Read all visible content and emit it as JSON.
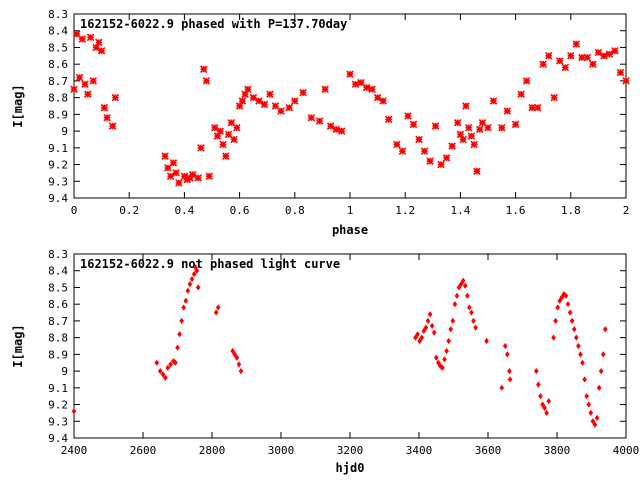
{
  "chart_data": [
    {
      "type": "scatter",
      "title": "162152-6022.9 phased with P=137.70day",
      "xlabel": "phase",
      "ylabel": "I[mag]",
      "xlim": [
        0,
        2
      ],
      "ylim": [
        8.3,
        9.4
      ],
      "y_inverted": true,
      "x_ticks": [
        "0",
        "0.2",
        "0.4",
        "0.6",
        "0.8",
        "1",
        "1.2",
        "1.4",
        "1.6",
        "1.8",
        "2"
      ],
      "y_ticks": [
        "8.3",
        "8.4",
        "8.5",
        "8.6",
        "8.7",
        "8.8",
        "8.9",
        "9",
        "9.1",
        "9.2",
        "9.3",
        "9.4"
      ],
      "grid": false,
      "marker_color": "#ff0000",
      "x": [
        0.0,
        0.01,
        0.02,
        0.03,
        0.04,
        0.05,
        0.06,
        0.07,
        0.08,
        0.09,
        0.1,
        0.11,
        0.12,
        0.14,
        0.15,
        0.33,
        0.34,
        0.35,
        0.36,
        0.37,
        0.38,
        0.4,
        0.41,
        0.42,
        0.43,
        0.45,
        0.46,
        0.47,
        0.48,
        0.49,
        0.51,
        0.52,
        0.53,
        0.54,
        0.55,
        0.56,
        0.57,
        0.58,
        0.59,
        0.6,
        0.61,
        0.62,
        0.63,
        0.65,
        0.67,
        0.69,
        0.71,
        0.73,
        0.75,
        0.78,
        0.8,
        0.83,
        0.86,
        0.89,
        0.91,
        0.93,
        0.95,
        0.97,
        1.0,
        1.02,
        1.04,
        1.06,
        1.08,
        1.1,
        1.12,
        1.14,
        1.17,
        1.19,
        1.21,
        1.23,
        1.25,
        1.27,
        1.29,
        1.31,
        1.33,
        1.35,
        1.37,
        1.39,
        1.4,
        1.41,
        1.42,
        1.43,
        1.44,
        1.45,
        1.46,
        1.47,
        1.48,
        1.5,
        1.52,
        1.55,
        1.57,
        1.6,
        1.62,
        1.64,
        1.66,
        1.68,
        1.7,
        1.72,
        1.74,
        1.76,
        1.78,
        1.8,
        1.82,
        1.84,
        1.86,
        1.88,
        1.9,
        1.92,
        1.94,
        1.96,
        1.98,
        2.0
      ],
      "y": [
        8.75,
        8.42,
        8.68,
        8.45,
        8.72,
        8.78,
        8.44,
        8.7,
        8.5,
        8.47,
        8.52,
        8.86,
        8.92,
        8.97,
        8.8,
        9.15,
        9.22,
        9.27,
        9.19,
        9.25,
        9.31,
        9.27,
        9.29,
        9.28,
        9.26,
        9.28,
        9.1,
        8.63,
        8.7,
        9.27,
        8.98,
        9.03,
        9.0,
        9.08,
        9.15,
        9.02,
        8.95,
        9.05,
        8.98,
        8.85,
        8.82,
        8.78,
        8.75,
        8.8,
        8.82,
        8.84,
        8.78,
        8.85,
        8.88,
        8.86,
        8.82,
        8.77,
        8.92,
        8.94,
        8.75,
        8.97,
        8.99,
        9.0,
        8.66,
        8.72,
        8.71,
        8.74,
        8.75,
        8.8,
        8.82,
        8.93,
        9.08,
        9.12,
        8.91,
        8.96,
        9.05,
        9.12,
        9.18,
        8.97,
        9.2,
        9.16,
        9.09,
        8.95,
        9.02,
        9.05,
        8.85,
        8.98,
        9.03,
        9.08,
        9.24,
        8.99,
        8.95,
        8.98,
        8.82,
        8.98,
        8.88,
        8.96,
        8.78,
        8.7,
        8.86,
        8.86,
        8.6,
        8.55,
        8.8,
        8.58,
        8.62,
        8.55,
        8.48,
        8.56,
        8.56,
        8.6,
        8.53,
        8.55,
        8.54,
        8.52,
        8.65,
        8.7
      ]
    },
    {
      "type": "scatter",
      "title": "162152-6022.9 not phased light curve",
      "xlabel": "hjd0",
      "ylabel": "I[mag]",
      "xlim": [
        2400,
        4000
      ],
      "ylim": [
        8.3,
        9.4
      ],
      "y_inverted": true,
      "x_ticks": [
        "2400",
        "2600",
        "2800",
        "3000",
        "3200",
        "3400",
        "3600",
        "3800",
        "4000"
      ],
      "y_ticks": [
        "8.3",
        "8.4",
        "8.5",
        "8.6",
        "8.7",
        "8.8",
        "8.9",
        "9",
        "9.1",
        "9.2",
        "9.3",
        "9.4"
      ],
      "grid": false,
      "marker_color": "#ff0000",
      "x": [
        2400,
        2640,
        2650,
        2658,
        2665,
        2672,
        2680,
        2688,
        2694,
        2700,
        2706,
        2712,
        2718,
        2724,
        2730,
        2736,
        2742,
        2748,
        2752,
        2756,
        2760,
        2812,
        2818,
        2860,
        2866,
        2872,
        2878,
        2884,
        3390,
        3396,
        3402,
        3408,
        3414,
        3420,
        3426,
        3432,
        3438,
        3444,
        3450,
        3456,
        3462,
        3468,
        3474,
        3480,
        3486,
        3492,
        3498,
        3504,
        3510,
        3516,
        3522,
        3528,
        3534,
        3540,
        3546,
        3552,
        3558,
        3564,
        3596,
        3640,
        3650,
        3656,
        3662,
        3664,
        3740,
        3746,
        3752,
        3758,
        3764,
        3770,
        3776,
        3790,
        3796,
        3802,
        3808,
        3814,
        3820,
        3826,
        3832,
        3838,
        3844,
        3850,
        3856,
        3862,
        3868,
        3874,
        3880,
        3886,
        3892,
        3898,
        3904,
        3910,
        3916,
        3922,
        3928,
        3934,
        3940
      ],
      "y": [
        9.24,
        8.95,
        9.0,
        9.02,
        9.04,
        8.98,
        8.96,
        8.94,
        8.95,
        8.86,
        8.78,
        8.7,
        8.62,
        8.58,
        8.52,
        8.48,
        8.45,
        8.42,
        8.38,
        8.4,
        8.5,
        8.65,
        8.62,
        8.88,
        8.9,
        8.92,
        8.96,
        9.0,
        8.8,
        8.78,
        8.82,
        8.8,
        8.76,
        8.74,
        8.7,
        8.66,
        8.73,
        8.77,
        8.92,
        8.95,
        8.97,
        8.98,
        8.93,
        8.88,
        8.82,
        8.75,
        8.7,
        8.6,
        8.55,
        8.5,
        8.48,
        8.46,
        8.49,
        8.55,
        8.62,
        8.65,
        8.7,
        8.74,
        8.82,
        9.1,
        8.85,
        8.9,
        9.0,
        9.05,
        9.0,
        9.08,
        9.15,
        9.2,
        9.22,
        9.25,
        9.18,
        8.8,
        8.7,
        8.62,
        8.58,
        8.56,
        8.54,
        8.55,
        8.6,
        8.65,
        8.7,
        8.75,
        8.8,
        8.85,
        8.9,
        8.95,
        9.05,
        9.15,
        9.2,
        9.25,
        9.3,
        9.32,
        9.28,
        9.1,
        9.0,
        8.9,
        8.75
      ]
    }
  ]
}
